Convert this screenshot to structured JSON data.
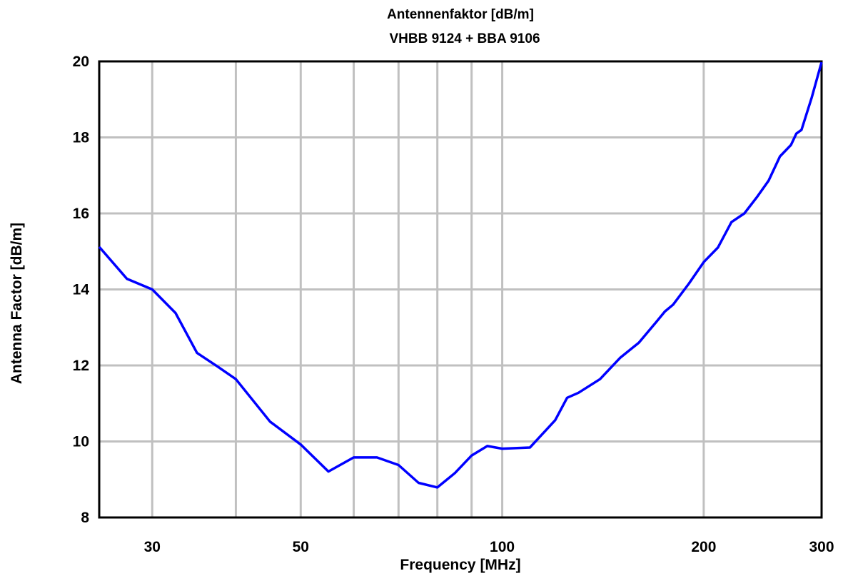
{
  "chart_data": {
    "type": "line",
    "title": "Antennenfaktor [dB/m]",
    "subtitle": "VHBB 9124 + BBA 9106",
    "xlabel": "Frequency [MHz]",
    "ylabel": "Antenna Factor [dB/m]",
    "x_scale": "log",
    "xlim": [
      25,
      300
    ],
    "ylim": [
      8,
      20
    ],
    "x_gridlines": [
      30,
      40,
      50,
      60,
      70,
      80,
      90,
      100,
      200
    ],
    "x_ticks": [
      {
        "value": 30,
        "label": "30"
      },
      {
        "value": 50,
        "label": "50"
      },
      {
        "value": 100,
        "label": "100"
      },
      {
        "value": 200,
        "label": "200"
      },
      {
        "value": 300,
        "label": "300"
      }
    ],
    "y_ticks": [
      {
        "value": 8,
        "label": "8"
      },
      {
        "value": 10,
        "label": "10"
      },
      {
        "value": 12,
        "label": "12"
      },
      {
        "value": 14,
        "label": "14"
      },
      {
        "value": 16,
        "label": "16"
      },
      {
        "value": 18,
        "label": "18"
      },
      {
        "value": 20,
        "label": "20"
      }
    ],
    "grid": true,
    "legend": "none",
    "line_color": "#0000ff",
    "grid_color": "#c0c0c0",
    "series": [
      {
        "x": [
          25,
          27.5,
          30,
          32.5,
          35,
          37.5,
          40,
          45,
          50,
          55,
          60,
          65,
          70,
          75,
          80,
          85,
          90,
          95,
          100,
          110,
          120,
          125,
          130,
          140,
          150,
          160,
          170,
          175,
          180,
          190,
          200,
          210,
          220,
          230,
          240,
          250,
          260,
          270,
          275,
          280,
          290,
          300
        ],
        "y": [
          15.12,
          14.28,
          14.0,
          13.38,
          12.33,
          11.98,
          11.64,
          10.52,
          9.92,
          9.21,
          9.58,
          9.58,
          9.38,
          8.91,
          8.79,
          9.17,
          9.63,
          9.88,
          9.81,
          9.84,
          10.56,
          11.15,
          11.28,
          11.64,
          12.2,
          12.6,
          13.15,
          13.42,
          13.6,
          14.15,
          14.72,
          15.1,
          15.77,
          16.0,
          16.42,
          16.86,
          17.5,
          17.8,
          18.1,
          18.2,
          19.05,
          19.98
        ]
      }
    ]
  }
}
